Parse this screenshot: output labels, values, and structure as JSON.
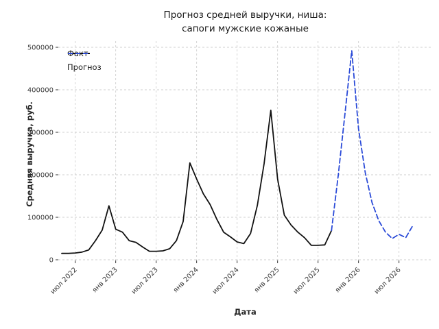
{
  "title": {
    "line1": "Прогноз средней выручки, ниша:",
    "line2": "сапоги мужские кожаные"
  },
  "axes": {
    "x_label": "Дата",
    "y_label": "Средняя выручка, руб.",
    "x_ticks": [
      {
        "label": "июл 2022",
        "month_index": 2
      },
      {
        "label": "янв 2023",
        "month_index": 8
      },
      {
        "label": "июл 2023",
        "month_index": 14
      },
      {
        "label": "янв 2024",
        "month_index": 20
      },
      {
        "label": "июл 2024",
        "month_index": 26
      },
      {
        "label": "янв 2025",
        "month_index": 32
      },
      {
        "label": "июл 2025",
        "month_index": 38
      },
      {
        "label": "янв 2026",
        "month_index": 44
      },
      {
        "label": "июл 2026",
        "month_index": 50
      }
    ],
    "y_ticks": [
      {
        "label": "0",
        "value": 0
      },
      {
        "label": "100000",
        "value": 100000
      },
      {
        "label": "200000",
        "value": 200000
      },
      {
        "label": "300000",
        "value": 300000
      },
      {
        "label": "400000",
        "value": 400000
      },
      {
        "label": "500000",
        "value": 500000
      }
    ]
  },
  "legend": {
    "items": [
      {
        "label": "Факт",
        "style": "solid",
        "color": "#111111"
      },
      {
        "label": "Прогноз",
        "style": "dashed",
        "color": "#2a4ad8"
      }
    ]
  },
  "chart_data": {
    "type": "line",
    "title": "Прогноз средней выручки, ниша: сапоги мужские кожаные",
    "xlabel": "Дата",
    "ylabel": "Средняя выручка, руб.",
    "ylim": [
      0,
      500000
    ],
    "grid": true,
    "legend_position": "upper left",
    "x_is_monthly_dates": true,
    "x_start_month": "2022-05",
    "x_end_month": "2026-09",
    "series": [
      {
        "name": "Факт",
        "color": "#111111",
        "line_style": "solid",
        "start_month": "2022-05",
        "start_index": 0,
        "values": [
          15000,
          15000,
          16000,
          18000,
          23000,
          45000,
          70000,
          127000,
          72000,
          65000,
          45000,
          41000,
          30000,
          20000,
          20000,
          21000,
          26000,
          45000,
          90000,
          228000,
          190000,
          155000,
          130000,
          95000,
          65000,
          54000,
          42000,
          38000,
          62000,
          128000,
          226000,
          352000,
          190000,
          105000,
          82000,
          65000,
          52000,
          34000,
          34000,
          35000,
          69000
        ]
      },
      {
        "name": "Прогноз",
        "color": "#2a4ad8",
        "line_style": "dashed",
        "start_month": "2025-09",
        "start_index": 40,
        "values": [
          69000,
          200000,
          345000,
          492000,
          308000,
          205000,
          135000,
          92000,
          65000,
          50000,
          60000,
          52000,
          79000
        ]
      }
    ]
  }
}
